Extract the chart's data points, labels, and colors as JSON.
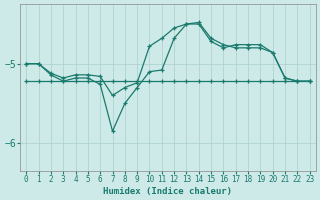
{
  "xlabel": "Humidex (Indice chaleur)",
  "background_color": "#ceeae8",
  "line_color": "#1a7a6e",
  "grid_color": "#aacfcc",
  "x_ticks": [
    0,
    1,
    2,
    3,
    4,
    5,
    6,
    7,
    8,
    9,
    10,
    11,
    12,
    13,
    14,
    15,
    16,
    17,
    18,
    19,
    20,
    21,
    22,
    23
  ],
  "y_ticks": [
    -6,
    -5
  ],
  "ylim": [
    -6.35,
    -4.25
  ],
  "xlim": [
    -0.5,
    23.5
  ],
  "line1_y": [
    -5.0,
    -5.0,
    -5.12,
    -5.18,
    -5.14,
    -5.14,
    -5.16,
    -5.4,
    -5.3,
    -5.24,
    -4.78,
    -4.68,
    -4.55,
    -4.5,
    -4.48,
    -4.68,
    -4.76,
    -4.8,
    -4.8,
    -4.8,
    -4.86,
    -5.18,
    -5.22,
    -5.22
  ],
  "line2_y": [
    -5.0,
    -5.0,
    -5.14,
    -5.22,
    -5.18,
    -5.18,
    -5.26,
    -5.85,
    -5.5,
    -5.3,
    -5.1,
    -5.08,
    -4.68,
    -4.5,
    -4.5,
    -4.72,
    -4.8,
    -4.76,
    -4.76,
    -4.76,
    -4.86,
    -5.18,
    -5.22,
    -5.22
  ],
  "line3_y": [
    -5.22,
    -5.22,
    -5.22,
    -5.22,
    -5.22,
    -5.22,
    -5.22,
    -5.22,
    -5.22,
    -5.22,
    -5.22,
    -5.22,
    -5.22,
    -5.22,
    -5.22,
    -5.22,
    -5.22,
    -5.22,
    -5.22,
    -5.22,
    -5.22,
    -5.22,
    -5.22,
    -5.22
  ]
}
